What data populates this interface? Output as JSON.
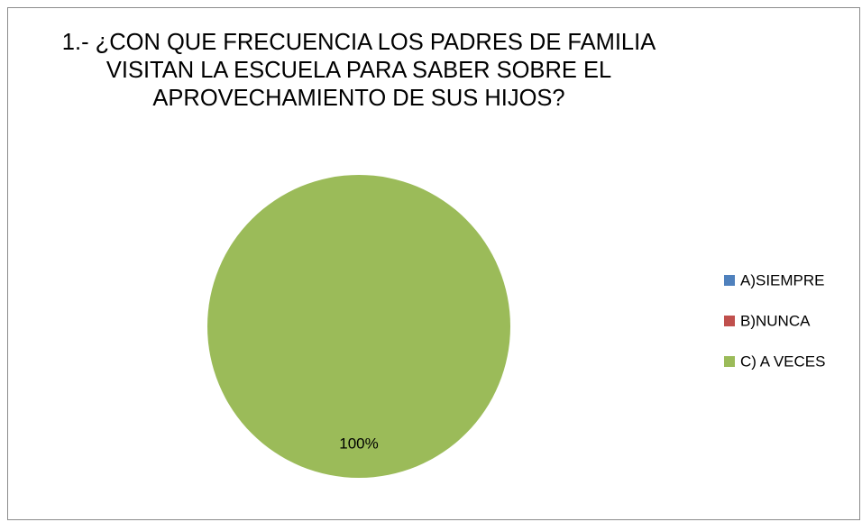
{
  "chart_data": {
    "type": "pie",
    "title": "1.- ¿CON QUE FRECUENCIA LOS PADRES DE FAMILIA VISITAN LA ESCUELA PARA SABER SOBRE EL APROVECHAMIENTO DE SUS HIJOS?",
    "categories": [
      "A)SIEMPRE",
      "B)NUNCA",
      "C) A VECES"
    ],
    "values": [
      0,
      0,
      100
    ],
    "value_labels": [
      null,
      null,
      "100%"
    ],
    "colors": [
      "#4f81bd",
      "#c0504d",
      "#9bbb59"
    ],
    "legend": "right"
  }
}
